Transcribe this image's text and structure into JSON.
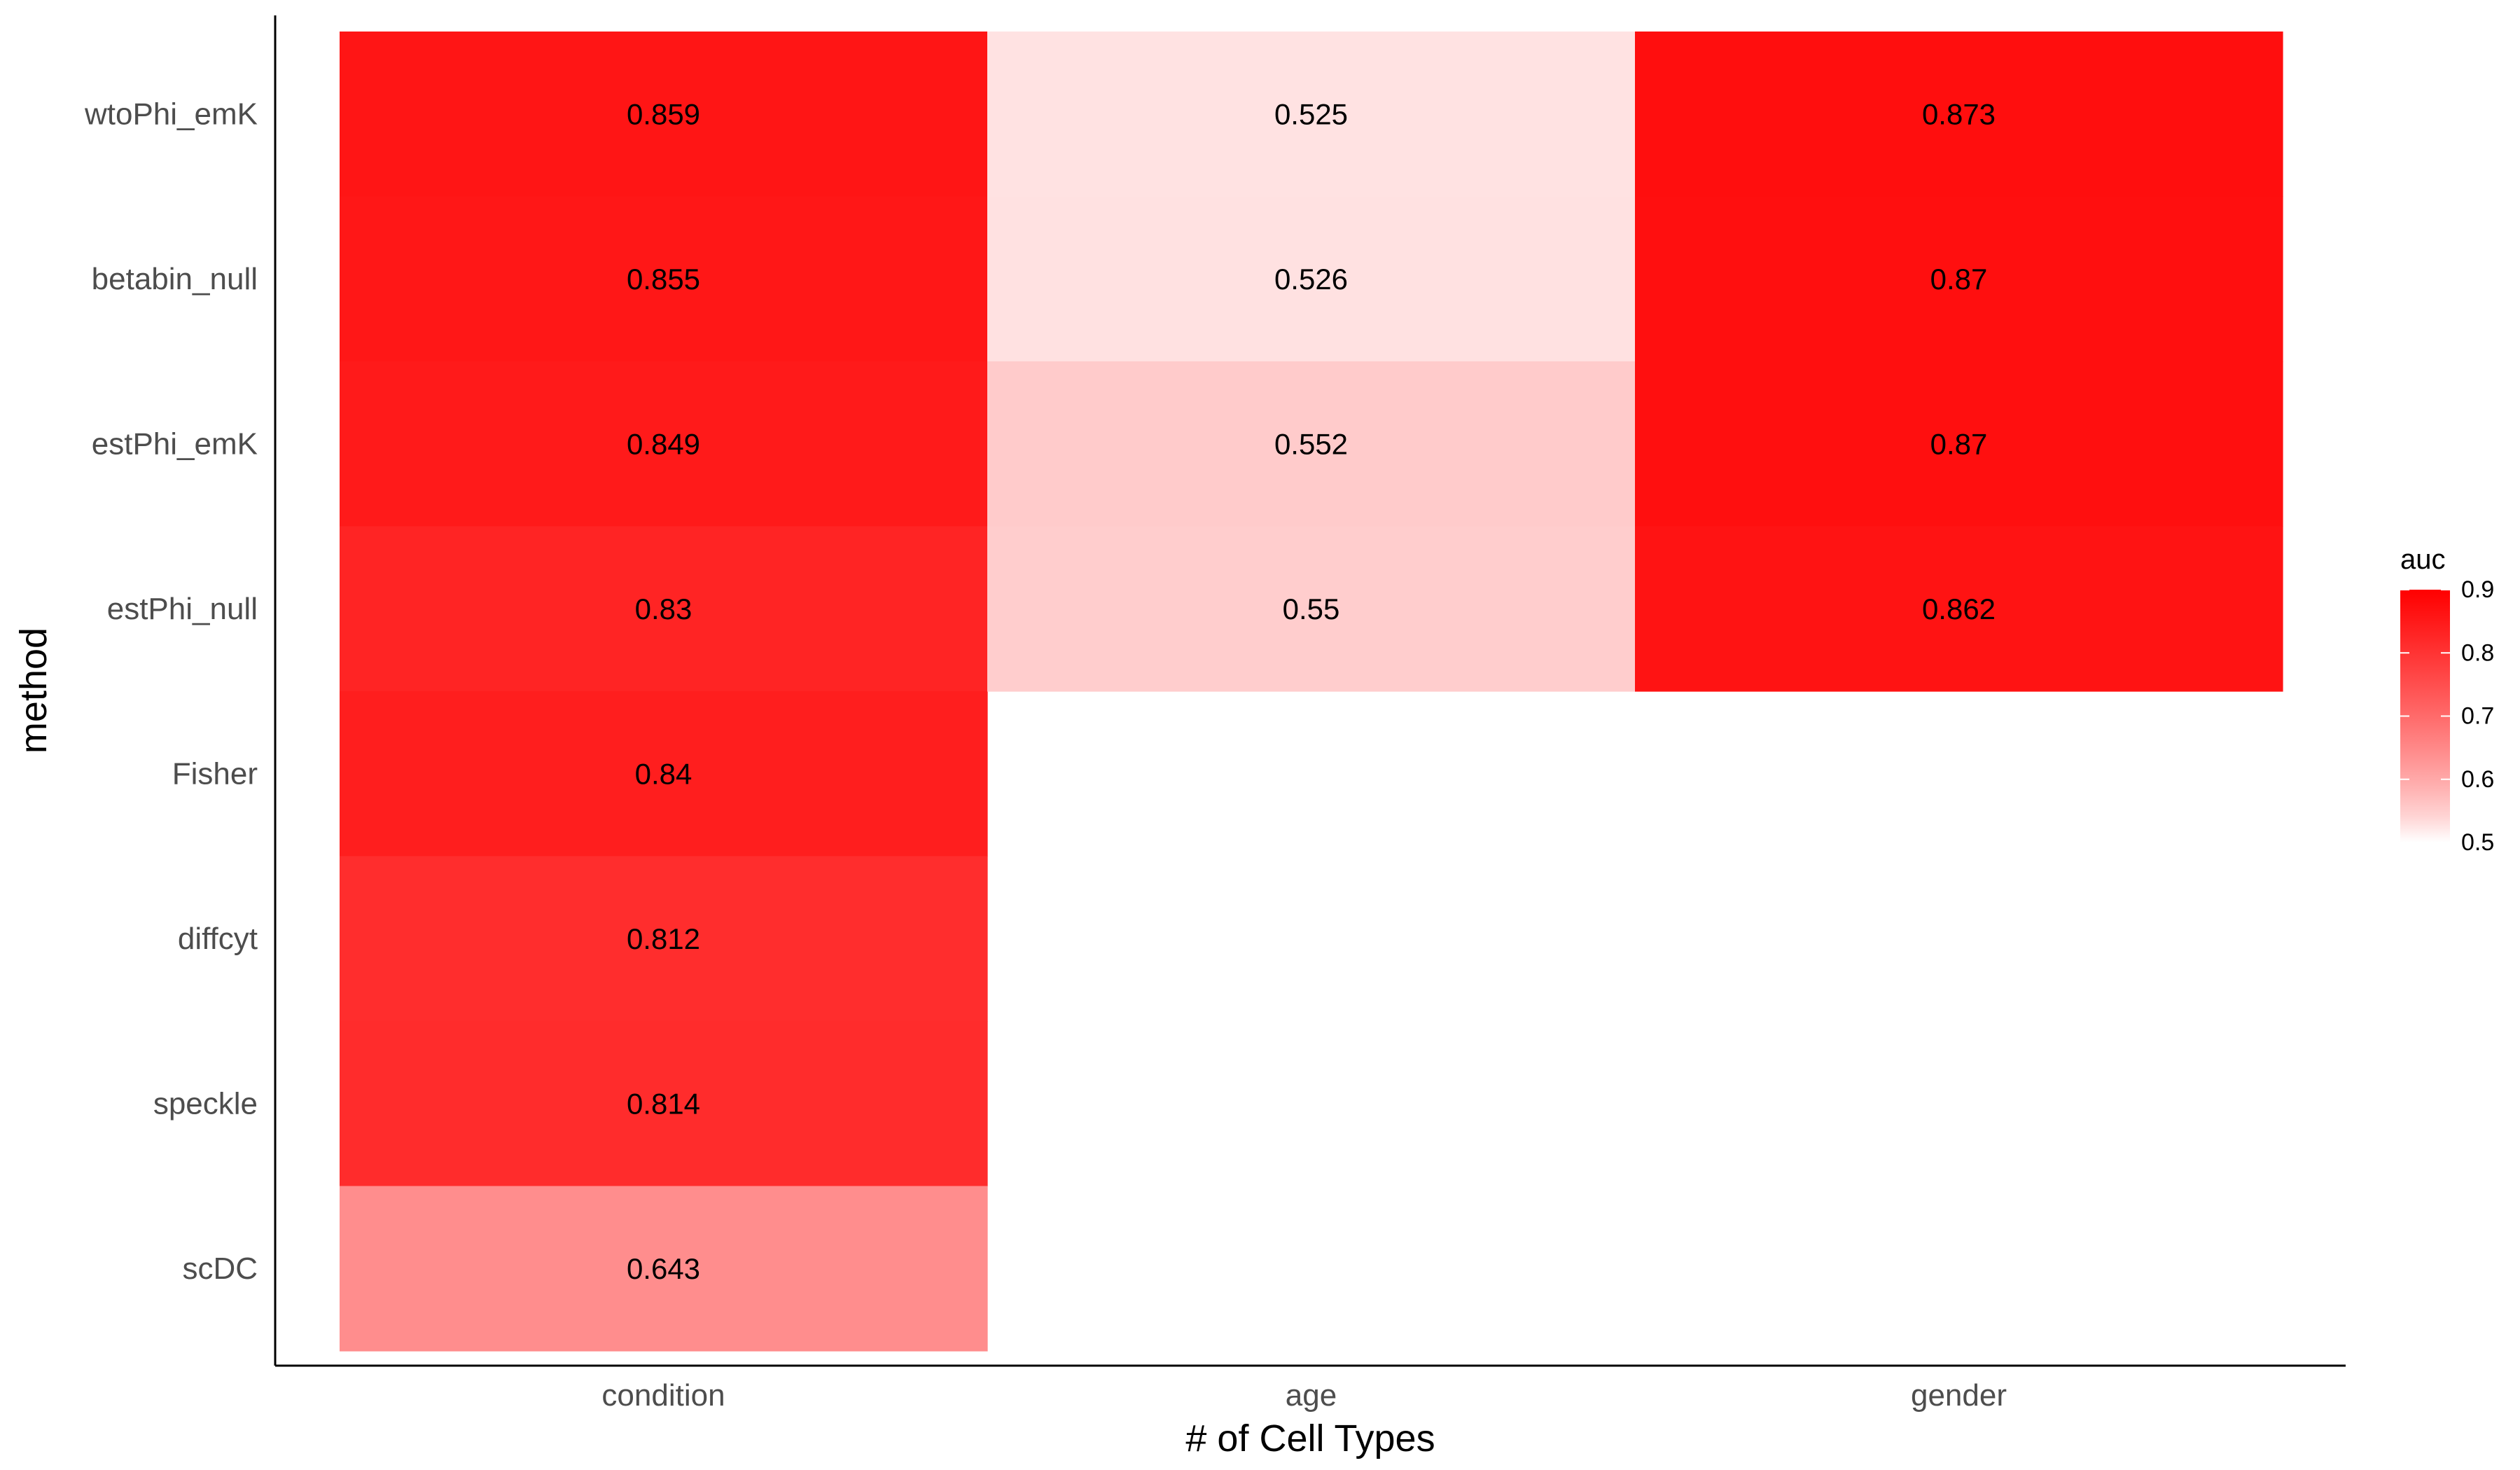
{
  "chart_data": {
    "type": "heatmap",
    "title": "",
    "xlabel": "# of Cell Types",
    "ylabel": "method",
    "x_categories": [
      "condition",
      "age",
      "gender"
    ],
    "y_categories": [
      "wtoPhi_emK",
      "betabin_null",
      "estPhi_emK",
      "estPhi_null",
      "Fisher",
      "diffcyt",
      "speckle",
      "scDC"
    ],
    "cells": [
      {
        "x": "condition",
        "y": "wtoPhi_emK",
        "value": 0.859,
        "label": "0.859"
      },
      {
        "x": "condition",
        "y": "betabin_null",
        "value": 0.855,
        "label": "0.855"
      },
      {
        "x": "condition",
        "y": "estPhi_emK",
        "value": 0.849,
        "label": "0.849"
      },
      {
        "x": "condition",
        "y": "estPhi_null",
        "value": 0.83,
        "label": "0.83"
      },
      {
        "x": "condition",
        "y": "Fisher",
        "value": 0.84,
        "label": "0.84"
      },
      {
        "x": "condition",
        "y": "diffcyt",
        "value": 0.812,
        "label": "0.812"
      },
      {
        "x": "condition",
        "y": "speckle",
        "value": 0.814,
        "label": "0.814"
      },
      {
        "x": "condition",
        "y": "scDC",
        "value": 0.643,
        "label": "0.643"
      },
      {
        "x": "age",
        "y": "wtoPhi_emK",
        "value": 0.525,
        "label": "0.525"
      },
      {
        "x": "age",
        "y": "betabin_null",
        "value": 0.526,
        "label": "0.526"
      },
      {
        "x": "age",
        "y": "estPhi_emK",
        "value": 0.552,
        "label": "0.552"
      },
      {
        "x": "age",
        "y": "estPhi_null",
        "value": 0.55,
        "label": "0.55"
      },
      {
        "x": "gender",
        "y": "wtoPhi_emK",
        "value": 0.873,
        "label": "0.873"
      },
      {
        "x": "gender",
        "y": "betabin_null",
        "value": 0.87,
        "label": "0.87"
      },
      {
        "x": "gender",
        "y": "estPhi_emK",
        "value": 0.87,
        "label": "0.87"
      },
      {
        "x": "gender",
        "y": "estPhi_null",
        "value": 0.862,
        "label": "0.862"
      }
    ],
    "legend": {
      "title": "auc",
      "position": "right",
      "range": [
        0.5,
        0.9
      ],
      "ticks": [
        0.9,
        0.8,
        0.7,
        0.6,
        0.5
      ],
      "tick_labels": [
        "0.9",
        "0.8",
        "0.7",
        "0.6",
        "0.5"
      ],
      "low_color": "#ffffff",
      "high_color": "#ff0000"
    },
    "grid": false
  }
}
